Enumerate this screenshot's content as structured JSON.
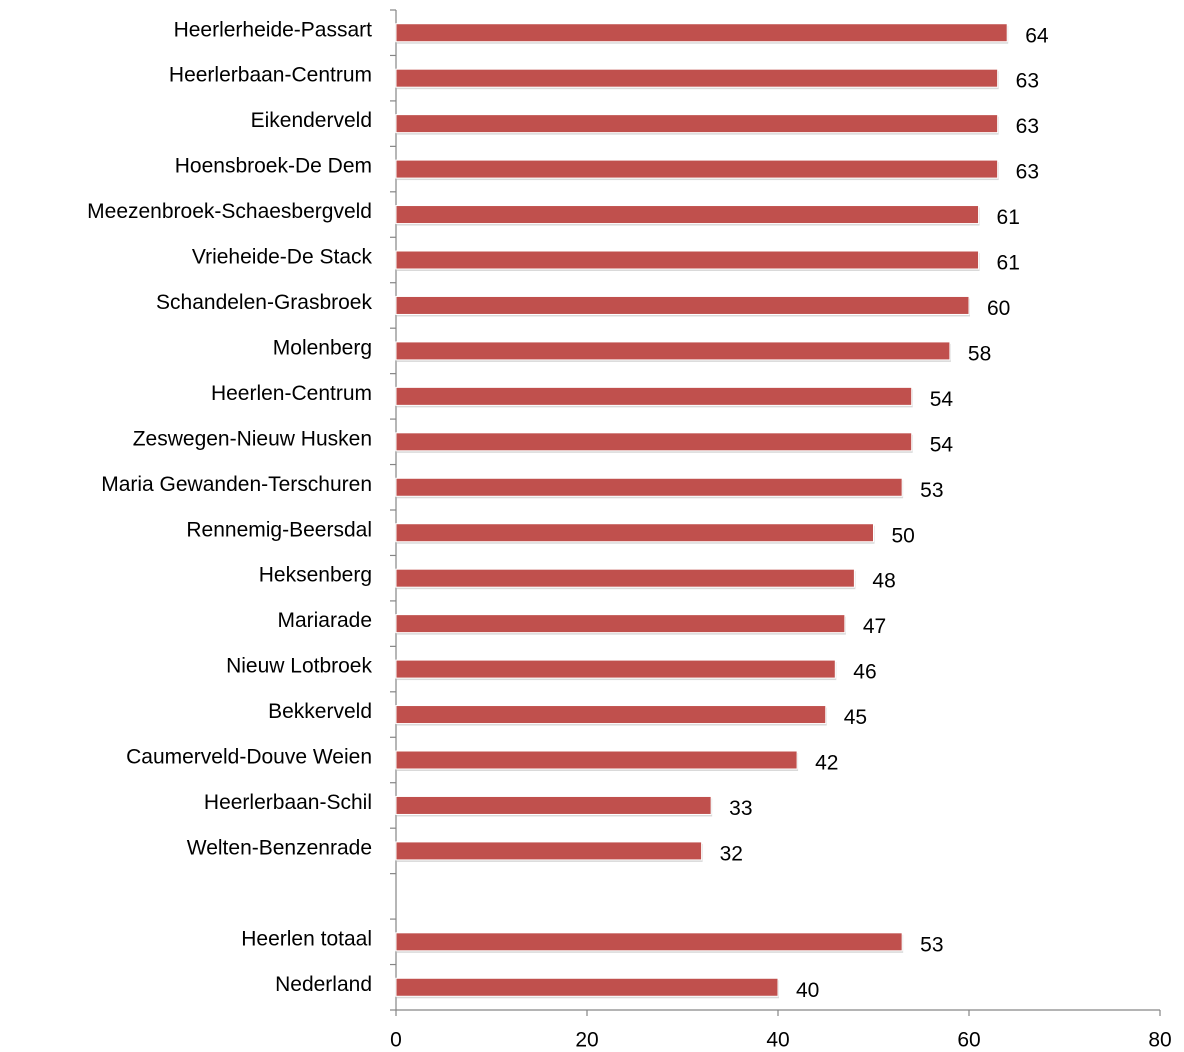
{
  "chart_data": {
    "type": "bar",
    "orientation": "horizontal",
    "categories": [
      "Heerlerheide-Passart",
      "Heerlerbaan-Centrum",
      "Eikenderveld",
      "Hoensbroek-De Dem",
      "Meezenbroek-Schaesbergveld",
      "Vrieheide-De Stack",
      "Schandelen-Grasbroek",
      "Molenberg",
      "Heerlen-Centrum",
      "Zeswegen-Nieuw Husken",
      "Maria Gewanden-Terschuren",
      "Rennemig-Beersdal",
      "Heksenberg",
      "Mariarade",
      "Nieuw Lotbroek",
      "Bekkerveld",
      "Caumerveld-Douve Weien",
      "Heerlerbaan-Schil",
      "Welten-Benzenrade",
      null,
      "Heerlen totaal",
      "Nederland"
    ],
    "values": [
      64,
      63,
      63,
      63,
      61,
      61,
      60,
      58,
      54,
      54,
      53,
      50,
      48,
      47,
      46,
      45,
      42,
      33,
      32,
      null,
      53,
      40
    ],
    "color": "#c0504d",
    "xlim": [
      0,
      80
    ],
    "xticks": [
      0,
      20,
      40,
      60,
      80
    ],
    "grid": false
  }
}
